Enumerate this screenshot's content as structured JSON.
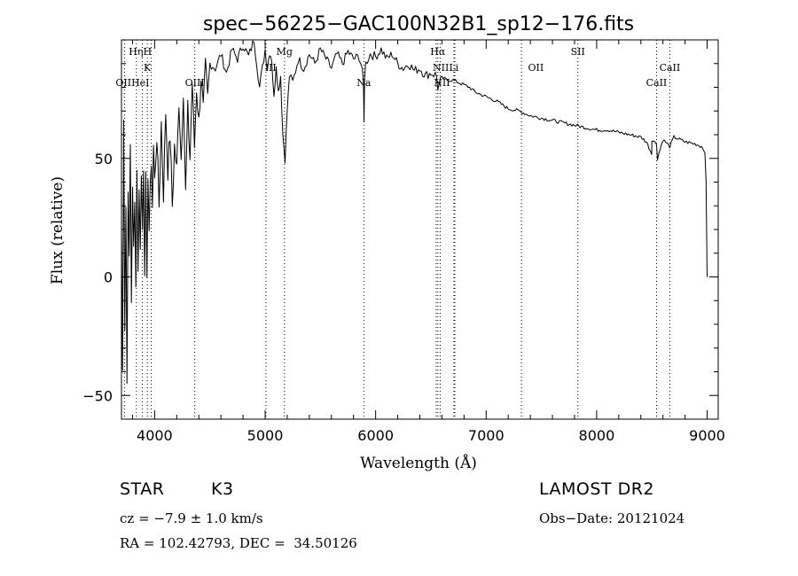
{
  "chart_data": {
    "type": "line",
    "title": "spec−56225−GAC100N32B1_sp12−176.fits",
    "xlabel": "Wavelength (Å)",
    "ylabel": "Flux (relative)",
    "xlim": [
      3700,
      9100
    ],
    "ylim": [
      -60,
      100
    ],
    "xticks": [
      4000,
      5000,
      6000,
      7000,
      8000,
      9000
    ],
    "yticks": [
      -50,
      0,
      50
    ],
    "ytick_labels": [
      "−50",
      "0",
      "50"
    ],
    "grid": false,
    "series": [
      {
        "x": [
          3700,
          3710,
          3720,
          3730,
          3740,
          3750,
          3760,
          3770,
          3780,
          3790,
          3800,
          3810,
          3820,
          3830,
          3840,
          3850,
          3860,
          3870,
          3880,
          3890,
          3900,
          3910,
          3920,
          3930,
          3940,
          3950,
          3960,
          3970,
          3980,
          3990,
          4000,
          4020,
          4040,
          4060,
          4080,
          4100,
          4120,
          4140,
          4160,
          4180,
          4200,
          4220,
          4240,
          4260,
          4280,
          4300,
          4320,
          4340,
          4360,
          4380,
          4400,
          4420,
          4440,
          4460,
          4480,
          4500,
          4550,
          4600,
          4650,
          4700,
          4750,
          4800,
          4850,
          4900,
          4950,
          5000,
          5020,
          5040,
          5060,
          5080,
          5100,
          5120,
          5140,
          5160,
          5170,
          5180,
          5190,
          5200,
          5220,
          5250,
          5300,
          5350,
          5400,
          5450,
          5500,
          5550,
          5600,
          5650,
          5700,
          5750,
          5800,
          5850,
          5880,
          5890,
          5895,
          5900,
          5910,
          5950,
          6000,
          6050,
          6100,
          6150,
          6200,
          6250,
          6300,
          6350,
          6400,
          6450,
          6500,
          6550,
          6563,
          6600,
          6650,
          6700,
          6750,
          6800,
          6850,
          6900,
          6950,
          7000,
          7100,
          7200,
          7300,
          7400,
          7500,
          7600,
          7700,
          7800,
          7900,
          8000,
          8100,
          8200,
          8300,
          8400,
          8450,
          8498,
          8500,
          8542,
          8550,
          8600,
          8662,
          8700,
          8800,
          8900,
          8950,
          8980,
          8990,
          8995,
          9000
        ],
        "y": [
          20,
          -40,
          70,
          -20,
          30,
          -45,
          40,
          5,
          55,
          -10,
          40,
          10,
          30,
          0,
          45,
          5,
          35,
          15,
          42,
          20,
          48,
          5,
          40,
          -5,
          45,
          20,
          35,
          50,
          30,
          55,
          40,
          60,
          30,
          65,
          35,
          70,
          45,
          60,
          30,
          55,
          45,
          75,
          50,
          80,
          35,
          70,
          50,
          82,
          55,
          80,
          65,
          85,
          70,
          88,
          75,
          90,
          88,
          94,
          86,
          96,
          92,
          98,
          93,
          100,
          80,
          96,
          88,
          95,
          92,
          75,
          90,
          78,
          85,
          60,
          55,
          50,
          60,
          70,
          85,
          82,
          92,
          88,
          94,
          90,
          96,
          92,
          88,
          94,
          90,
          95,
          92,
          93,
          88,
          80,
          65,
          85,
          90,
          94,
          93,
          96,
          92,
          94,
          90,
          88,
          90,
          87,
          88,
          85,
          86,
          85,
          80,
          84,
          83,
          83,
          82,
          81,
          80,
          78,
          77,
          76,
          74,
          71,
          70,
          68,
          67,
          66,
          65,
          64,
          63,
          62,
          62,
          61,
          60,
          59,
          57,
          52,
          58,
          56,
          50,
          58,
          55,
          59,
          57,
          56,
          55,
          53,
          40,
          20,
          0
        ]
      }
    ],
    "lines": [
      {
        "name": "OII",
        "x": 3727
      },
      {
        "name": "Hη",
        "x": 3835
      },
      {
        "name": "HeI",
        "x": 3889
      },
      {
        "name": "K",
        "x": 3934
      },
      {
        "name": "H",
        "x": 3969
      },
      {
        "name": "OIII",
        "x": 4363
      },
      {
        "name": "OIII",
        "x": 5007
      },
      {
        "name": "Mg",
        "x": 5175
      },
      {
        "name": "Na",
        "x": 5893
      },
      {
        "name": "NII",
        "x": 6548
      },
      {
        "name": "Hα",
        "x": 6563
      },
      {
        "name": "NII",
        "x": 6584
      },
      {
        "name": "SII",
        "x": 6717
      },
      {
        "name": "Li",
        "x": 6708
      },
      {
        "name": "OII",
        "x": 7320
      },
      {
        "name": "SII",
        "x": 7830
      },
      {
        "name": "CaII",
        "x": 8542
      },
      {
        "name": "CaII",
        "x": 8662
      }
    ],
    "line_labels": [
      {
        "text": "HηH",
        "x": 3870,
        "row": 1
      },
      {
        "text": "K",
        "x": 3934,
        "row": 2
      },
      {
        "text": "OIIHeI",
        "x": 3800,
        "row": 3
      },
      {
        "text": "OIII",
        "x": 4363,
        "row": 3
      },
      {
        "text": "Mg",
        "x": 5175,
        "row": 1
      },
      {
        "text": "III",
        "x": 5050,
        "row": 2
      },
      {
        "text": "Na",
        "x": 5893,
        "row": 3
      },
      {
        "text": "Hα",
        "x": 6563,
        "row": 1
      },
      {
        "text": "NII",
        "x": 6590,
        "row": 2
      },
      {
        "text": "Li",
        "x": 6708,
        "row": 2
      },
      {
        "text": "NII",
        "x": 6600,
        "row": 3
      },
      {
        "text": "OII",
        "x": 7450,
        "row": 2
      },
      {
        "text": "SII",
        "x": 7830,
        "row": 1
      },
      {
        "text": "CaII",
        "x": 8662,
        "row": 2
      },
      {
        "text": "CaII",
        "x": 8542,
        "row": 3
      }
    ]
  },
  "info": {
    "class_label": "STAR",
    "subclass": "K3",
    "survey": "LAMOST DR2",
    "cz": "cz = −7.9 ± 1.0 km/s",
    "obs_date": "Obs−Date: 20121024",
    "coords": "RA = 102.42793, DEC =  34.50126"
  }
}
